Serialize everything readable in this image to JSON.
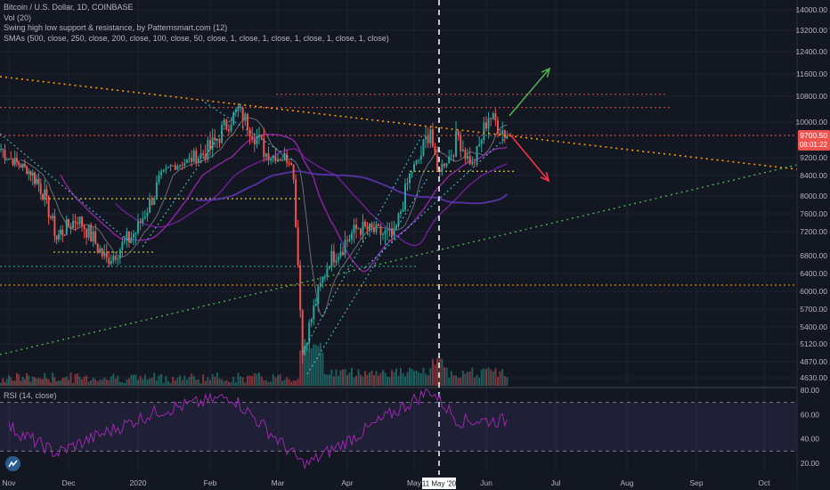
{
  "legend": {
    "title": "Bitcoin / U.S. Dollar, 1D, COINBASE",
    "vol": "Vol (20)",
    "swing": "Swing high low support & resistance, by Patternsmart.com (12)",
    "smas": "SMAs (500, close, 250, close, 200, close, 100, close, 50, close, 1, close, 1, close, 1, close, 1, close, 1, close)"
  },
  "rsi_label": "RSI (14, close)",
  "price_tag": {
    "price": "9700.50",
    "countdown": "08:01:22",
    "color": "#ef5350"
  },
  "crosshair_label": "11 May '20",
  "colors": {
    "up": "#26a69a",
    "down": "#ef5350",
    "background": "#131722",
    "grid": "#1e222d",
    "rsi_line": "#9c27b0"
  },
  "chart_data": {
    "type": "candlestick",
    "x_ticks": [
      "Nov",
      "Dec",
      "2020",
      "Feb",
      "Mar",
      "Apr",
      "May",
      "Jun",
      "Jul",
      "Aug",
      "Sep",
      "Oct"
    ],
    "y_ticks": [
      14000,
      13200,
      12400,
      11600,
      10800,
      10000,
      9200,
      8400,
      8000,
      7600,
      7200,
      6800,
      6400,
      6000,
      5700,
      5400,
      5120,
      4870,
      4630
    ],
    "rsi_ticks": [
      80,
      60,
      40,
      20
    ],
    "rsi_levels": [
      70,
      30
    ],
    "last_price": 9700.5,
    "close_path": [
      {
        "date": "2019-10-28",
        "close": 9400
      },
      {
        "date": "2019-11-08",
        "close": 8800
      },
      {
        "date": "2019-11-18",
        "close": 8100
      },
      {
        "date": "2019-11-25",
        "close": 7100
      },
      {
        "date": "2019-12-05",
        "close": 7500
      },
      {
        "date": "2019-12-18",
        "close": 6700
      },
      {
        "date": "2019-12-31",
        "close": 7200
      },
      {
        "date": "2020-01-15",
        "close": 8800
      },
      {
        "date": "2020-02-01",
        "close": 9400
      },
      {
        "date": "2020-02-13",
        "close": 10350
      },
      {
        "date": "2020-02-25",
        "close": 9300
      },
      {
        "date": "2020-03-07",
        "close": 9100
      },
      {
        "date": "2020-03-12",
        "close": 4970
      },
      {
        "date": "2020-03-24",
        "close": 6700
      },
      {
        "date": "2020-04-06",
        "close": 7300
      },
      {
        "date": "2020-04-22",
        "close": 7100
      },
      {
        "date": "2020-05-01",
        "close": 8800
      },
      {
        "date": "2020-05-08",
        "close": 9900
      },
      {
        "date": "2020-05-11",
        "close": 8600
      },
      {
        "date": "2020-05-20",
        "close": 9700
      },
      {
        "date": "2020-05-26",
        "close": 8900
      },
      {
        "date": "2020-06-02",
        "close": 10200
      },
      {
        "date": "2020-06-10",
        "close": 9700
      }
    ],
    "rsi_path": [
      {
        "date": "2019-11-01",
        "rsi": 50
      },
      {
        "date": "2019-11-25",
        "rsi": 28
      },
      {
        "date": "2020-01-10",
        "rsi": 63
      },
      {
        "date": "2020-02-10",
        "rsi": 75
      },
      {
        "date": "2020-03-13",
        "rsi": 18
      },
      {
        "date": "2020-04-10",
        "rsi": 48
      },
      {
        "date": "2020-05-08",
        "rsi": 80
      },
      {
        "date": "2020-05-20",
        "rsi": 55
      },
      {
        "date": "2020-06-10",
        "rsi": 55
      }
    ]
  }
}
